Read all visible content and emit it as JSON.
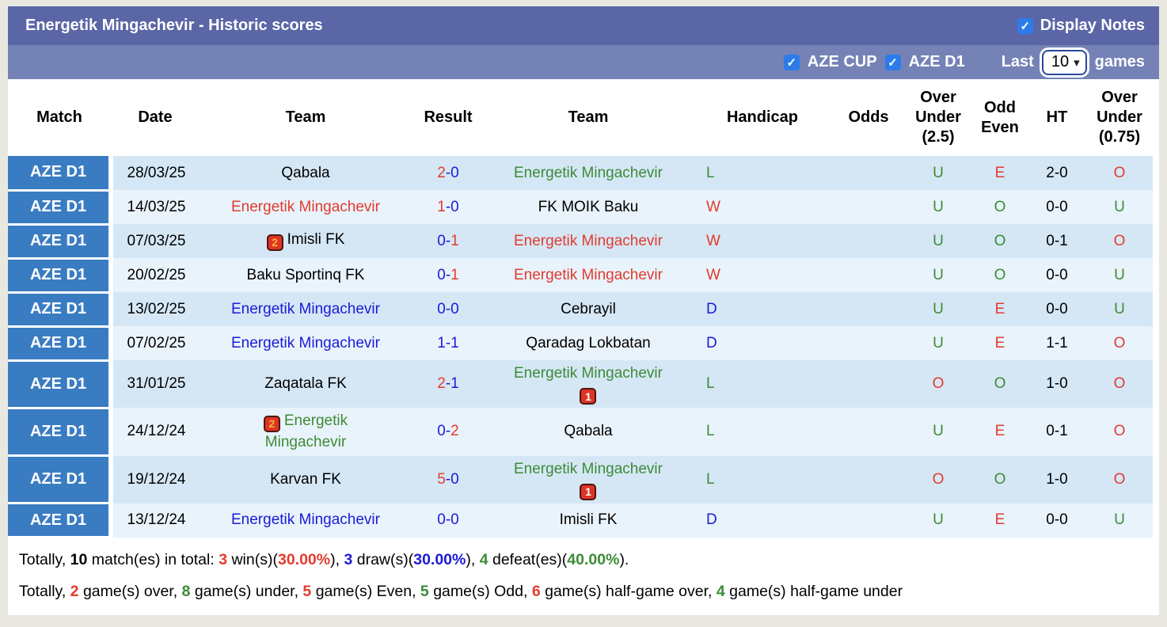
{
  "colors": {
    "red": "#e23b2e",
    "blue": "#1b1bd6",
    "green": "#3d8b37",
    "black": "#000000"
  },
  "header": {
    "title": "Energetik Mingachevir - Historic scores",
    "display_notes_label": "Display Notes",
    "display_notes_checked": true
  },
  "filter_bar": {
    "aze_cup_label": "AZE CUP",
    "aze_cup_checked": true,
    "aze_d1_label": "AZE D1",
    "aze_d1_checked": true,
    "last_label": "Last",
    "games_label": "games",
    "last_games_selected": "10"
  },
  "table": {
    "columns": [
      "Match",
      "Date",
      "Team",
      "Result",
      "Team",
      "Handicap",
      "Odds",
      "Over Under (2.5)",
      "Odd Even",
      "HT",
      "Over Under (0.75)"
    ],
    "rows": [
      {
        "match": "AZE D1",
        "date": "28/03/25",
        "team1": {
          "name": "Qabala",
          "color": "#000000",
          "badge": ""
        },
        "result": {
          "home": "2",
          "sep": "-",
          "away": "0",
          "home_color": "#e23b2e",
          "away_color": "#1b1bd6"
        },
        "team2": {
          "name": "Energetik Mingachevir",
          "color": "#3d8b37",
          "badge": ""
        },
        "handicap": {
          "text": "L",
          "color": "#3d8b37"
        },
        "odds": "",
        "ou25": {
          "text": "U",
          "color": "#3d8b37"
        },
        "odd_even": {
          "text": "E",
          "color": "#e23b2e"
        },
        "ht": "2-0",
        "ou075": {
          "text": "O",
          "color": "#e23b2e"
        }
      },
      {
        "match": "AZE D1",
        "date": "14/03/25",
        "team1": {
          "name": "Energetik Mingachevir",
          "color": "#e23b2e",
          "badge": ""
        },
        "result": {
          "home": "1",
          "sep": "-",
          "away": "0",
          "home_color": "#e23b2e",
          "away_color": "#1b1bd6"
        },
        "team2": {
          "name": "FK MOIK Baku",
          "color": "#000000",
          "badge": ""
        },
        "handicap": {
          "text": "W",
          "color": "#e23b2e"
        },
        "odds": "",
        "ou25": {
          "text": "U",
          "color": "#3d8b37"
        },
        "odd_even": {
          "text": "O",
          "color": "#3d8b37"
        },
        "ht": "0-0",
        "ou075": {
          "text": "U",
          "color": "#3d8b37"
        }
      },
      {
        "match": "AZE D1",
        "date": "07/03/25",
        "team1": {
          "name": "Imisli FK",
          "color": "#000000",
          "badge": "2"
        },
        "result": {
          "home": "0",
          "sep": "-",
          "away": "1",
          "home_color": "#1b1bd6",
          "away_color": "#e23b2e"
        },
        "team2": {
          "name": "Energetik Mingachevir",
          "color": "#e23b2e",
          "badge": ""
        },
        "handicap": {
          "text": "W",
          "color": "#e23b2e"
        },
        "odds": "",
        "ou25": {
          "text": "U",
          "color": "#3d8b37"
        },
        "odd_even": {
          "text": "O",
          "color": "#3d8b37"
        },
        "ht": "0-1",
        "ou075": {
          "text": "O",
          "color": "#e23b2e"
        }
      },
      {
        "match": "AZE D1",
        "date": "20/02/25",
        "team1": {
          "name": "Baku Sportinq FK",
          "color": "#000000",
          "badge": ""
        },
        "result": {
          "home": "0",
          "sep": "-",
          "away": "1",
          "home_color": "#1b1bd6",
          "away_color": "#e23b2e"
        },
        "team2": {
          "name": "Energetik Mingachevir",
          "color": "#e23b2e",
          "badge": ""
        },
        "handicap": {
          "text": "W",
          "color": "#e23b2e"
        },
        "odds": "",
        "ou25": {
          "text": "U",
          "color": "#3d8b37"
        },
        "odd_even": {
          "text": "O",
          "color": "#3d8b37"
        },
        "ht": "0-0",
        "ou075": {
          "text": "U",
          "color": "#3d8b37"
        }
      },
      {
        "match": "AZE D1",
        "date": "13/02/25",
        "team1": {
          "name": "Energetik Mingachevir",
          "color": "#1b1bd6",
          "badge": ""
        },
        "result": {
          "home": "0",
          "sep": "-",
          "away": "0",
          "home_color": "#1b1bd6",
          "away_color": "#1b1bd6"
        },
        "team2": {
          "name": "Cebrayil",
          "color": "#000000",
          "badge": ""
        },
        "handicap": {
          "text": "D",
          "color": "#1b1bd6"
        },
        "odds": "",
        "ou25": {
          "text": "U",
          "color": "#3d8b37"
        },
        "odd_even": {
          "text": "E",
          "color": "#e23b2e"
        },
        "ht": "0-0",
        "ou075": {
          "text": "U",
          "color": "#3d8b37"
        }
      },
      {
        "match": "AZE D1",
        "date": "07/02/25",
        "team1": {
          "name": "Energetik Mingachevir",
          "color": "#1b1bd6",
          "badge": ""
        },
        "result": {
          "home": "1",
          "sep": "-",
          "away": "1",
          "home_color": "#1b1bd6",
          "away_color": "#1b1bd6"
        },
        "team2": {
          "name": "Qaradag Lokbatan",
          "color": "#000000",
          "badge": ""
        },
        "handicap": {
          "text": "D",
          "color": "#1b1bd6"
        },
        "odds": "",
        "ou25": {
          "text": "U",
          "color": "#3d8b37"
        },
        "odd_even": {
          "text": "E",
          "color": "#e23b2e"
        },
        "ht": "1-1",
        "ou075": {
          "text": "O",
          "color": "#e23b2e"
        }
      },
      {
        "match": "AZE D1",
        "date": "31/01/25",
        "team1": {
          "name": "Zaqatala FK",
          "color": "#000000",
          "badge": ""
        },
        "result": {
          "home": "2",
          "sep": "-",
          "away": "1",
          "home_color": "#e23b2e",
          "away_color": "#1b1bd6"
        },
        "team2": {
          "name": "Energetik Mingachevir",
          "color": "#3d8b37",
          "badge": "1"
        },
        "handicap": {
          "text": "L",
          "color": "#3d8b37"
        },
        "odds": "",
        "ou25": {
          "text": "O",
          "color": "#e23b2e"
        },
        "odd_even": {
          "text": "O",
          "color": "#3d8b37"
        },
        "ht": "1-0",
        "ou075": {
          "text": "O",
          "color": "#e23b2e"
        }
      },
      {
        "match": "AZE D1",
        "date": "24/12/24",
        "team1": {
          "name": "Energetik Mingachevir",
          "color": "#3d8b37",
          "badge": "2"
        },
        "result": {
          "home": "0",
          "sep": "-",
          "away": "2",
          "home_color": "#1b1bd6",
          "away_color": "#e23b2e"
        },
        "team2": {
          "name": "Qabala",
          "color": "#000000",
          "badge": ""
        },
        "handicap": {
          "text": "L",
          "color": "#3d8b37"
        },
        "odds": "",
        "ou25": {
          "text": "U",
          "color": "#3d8b37"
        },
        "odd_even": {
          "text": "E",
          "color": "#e23b2e"
        },
        "ht": "0-1",
        "ou075": {
          "text": "O",
          "color": "#e23b2e"
        }
      },
      {
        "match": "AZE D1",
        "date": "19/12/24",
        "team1": {
          "name": "Karvan FK",
          "color": "#000000",
          "badge": ""
        },
        "result": {
          "home": "5",
          "sep": "-",
          "away": "0",
          "home_color": "#e23b2e",
          "away_color": "#1b1bd6"
        },
        "team2": {
          "name": "Energetik Mingachevir",
          "color": "#3d8b37",
          "badge": "1"
        },
        "handicap": {
          "text": "L",
          "color": "#3d8b37"
        },
        "odds": "",
        "ou25": {
          "text": "O",
          "color": "#e23b2e"
        },
        "odd_even": {
          "text": "O",
          "color": "#3d8b37"
        },
        "ht": "1-0",
        "ou075": {
          "text": "O",
          "color": "#e23b2e"
        }
      },
      {
        "match": "AZE D1",
        "date": "13/12/24",
        "team1": {
          "name": "Energetik Mingachevir",
          "color": "#1b1bd6",
          "badge": ""
        },
        "result": {
          "home": "0",
          "sep": "-",
          "away": "0",
          "home_color": "#1b1bd6",
          "away_color": "#1b1bd6"
        },
        "team2": {
          "name": "Imisli FK",
          "color": "#000000",
          "badge": ""
        },
        "handicap": {
          "text": "D",
          "color": "#1b1bd6"
        },
        "odds": "",
        "ou25": {
          "text": "U",
          "color": "#3d8b37"
        },
        "odd_even": {
          "text": "E",
          "color": "#e23b2e"
        },
        "ht": "0-0",
        "ou075": {
          "text": "U",
          "color": "#3d8b37"
        }
      }
    ]
  },
  "footer": {
    "line1": [
      {
        "t": "Totally, "
      },
      {
        "t": "10",
        "b": true
      },
      {
        "t": " match(es) in total: "
      },
      {
        "t": "3",
        "c": "#e23b2e",
        "b": true
      },
      {
        "t": " win(s)("
      },
      {
        "t": "30.00%",
        "c": "#e23b2e",
        "b": true
      },
      {
        "t": "), "
      },
      {
        "t": "3",
        "c": "#1b1bd6",
        "b": true
      },
      {
        "t": " draw(s)("
      },
      {
        "t": "30.00%",
        "c": "#1b1bd6",
        "b": true
      },
      {
        "t": "), "
      },
      {
        "t": "4",
        "c": "#3d8b37",
        "b": true
      },
      {
        "t": " defeat(es)("
      },
      {
        "t": "40.00%",
        "c": "#3d8b37",
        "b": true
      },
      {
        "t": ")."
      }
    ],
    "line2": [
      {
        "t": "Totally, "
      },
      {
        "t": "2",
        "c": "#e23b2e",
        "b": true
      },
      {
        "t": " game(s) over, "
      },
      {
        "t": "8",
        "c": "#3d8b37",
        "b": true
      },
      {
        "t": " game(s) under, "
      },
      {
        "t": "5",
        "c": "#e23b2e",
        "b": true
      },
      {
        "t": " game(s) Even, "
      },
      {
        "t": "5",
        "c": "#3d8b37",
        "b": true
      },
      {
        "t": " game(s) Odd, "
      },
      {
        "t": "6",
        "c": "#e23b2e",
        "b": true
      },
      {
        "t": " game(s) half-game over, "
      },
      {
        "t": "4",
        "c": "#3d8b37",
        "b": true
      },
      {
        "t": " game(s) half-game under"
      }
    ]
  }
}
